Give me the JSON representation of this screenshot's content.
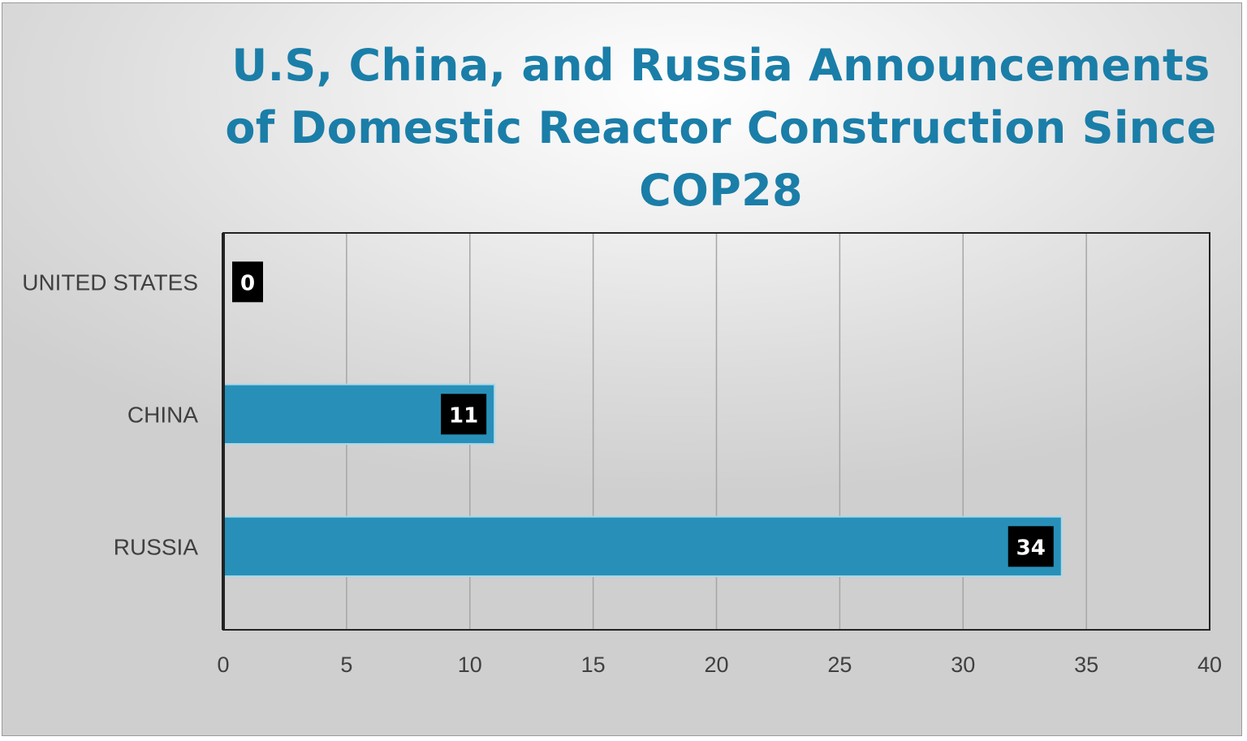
{
  "colors": {
    "bar": "#2890b8",
    "bar_border": "#a8d8ec",
    "title": "#1a7ea8",
    "grid": "#a6a6a6",
    "axis": "#222222",
    "label_box": "#000000"
  },
  "chart_data": {
    "type": "bar",
    "orientation": "horizontal",
    "title": "U.S, China, and Russia Announcements of  Domestic Reactor Construction Since COP28",
    "categories": [
      "UNITED STATES",
      "CHINA",
      "RUSSIA"
    ],
    "values": [
      0,
      11,
      34
    ],
    "xlim": [
      0,
      40
    ],
    "x_ticks": [
      0,
      5,
      10,
      15,
      20,
      25,
      30,
      35,
      40
    ],
    "xlabel": "",
    "ylabel": "",
    "grid": "vertical",
    "legend": "none",
    "data_labels": true
  }
}
